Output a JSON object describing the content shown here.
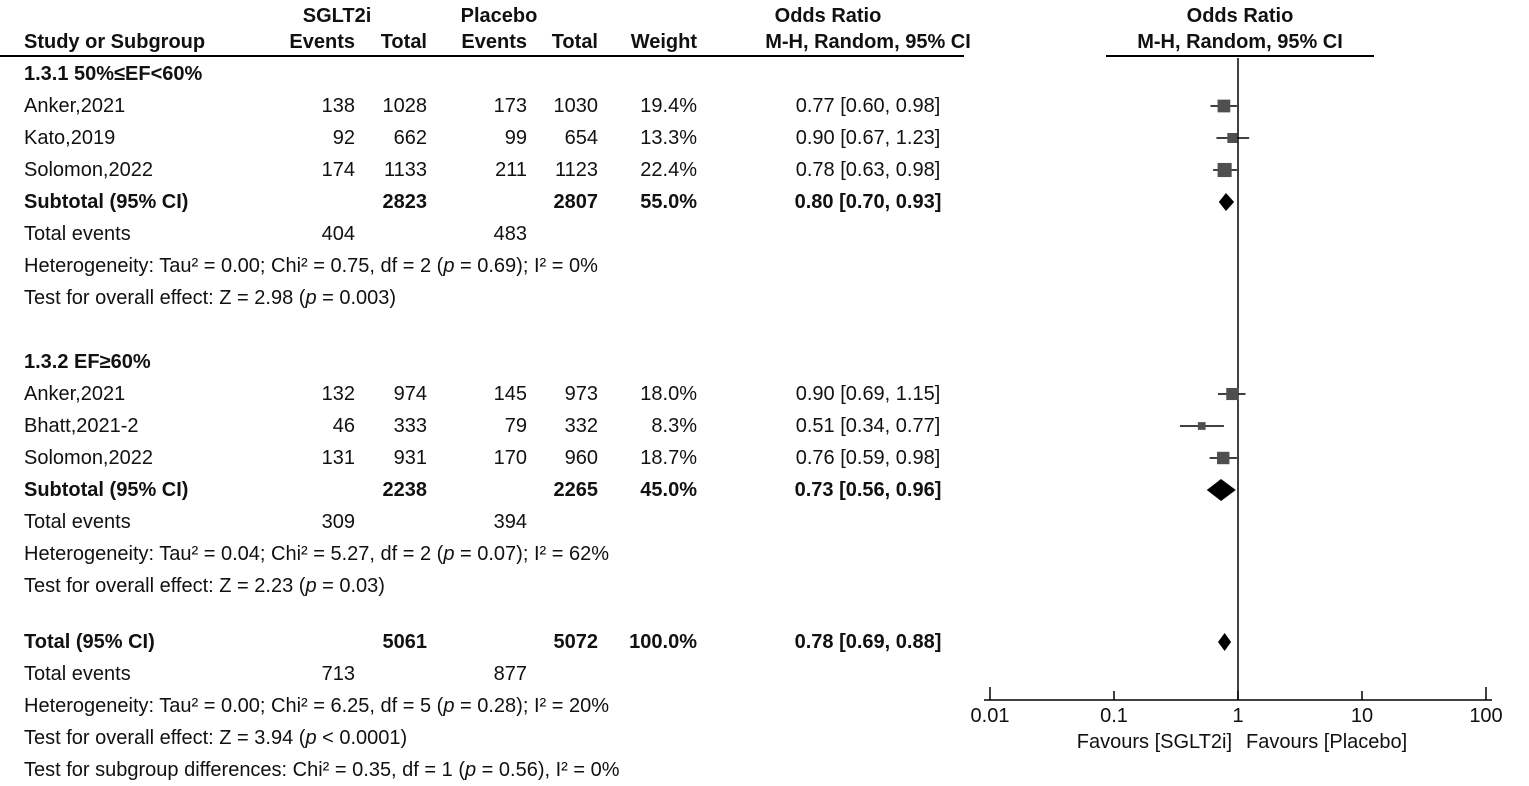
{
  "header": {
    "group1": "SGLT2i",
    "group2": "Placebo",
    "or_left": "Odds Ratio",
    "or_right": "Odds Ratio",
    "col_study": "Study or Subgroup",
    "col_events1": "Events",
    "col_total1": "Total",
    "col_events2": "Events",
    "col_total2": "Total",
    "col_weight": "Weight",
    "col_ci": "M-H, Random, 95% CI",
    "col_ci_plot": "M-H, Random, 95% CI"
  },
  "axis": {
    "scale": "log10",
    "null_line": 1,
    "ticks": [
      0.01,
      0.1,
      1,
      10,
      100
    ],
    "tick_labels": [
      "0.01",
      "0.1",
      "1",
      "10",
      "100"
    ],
    "favours_left": "Favours [SGLT2i]",
    "favours_right": "Favours [Placebo]"
  },
  "marker_color": "#4f4f4f",
  "diamond_color": "#000000",
  "chart_data": {
    "type": "forest",
    "effect_measure": "Odds Ratio",
    "method": "M-H, Random, 95% CI",
    "x_scale": "log10",
    "x_ticks": [
      0.01,
      0.1,
      1,
      10,
      100
    ],
    "rows": [
      {
        "type": "subgroup",
        "label": "1.3.1 50%≤EF<60%"
      },
      {
        "type": "study",
        "label": "Anker,2021",
        "events1": "138",
        "total1": "1028",
        "events2": "173",
        "total2": "1030",
        "weight": "19.4%",
        "ci_text": "0.77 [0.60, 0.98]",
        "or": 0.77,
        "lo": 0.6,
        "hi": 0.98,
        "weight_pct": 19.4
      },
      {
        "type": "study",
        "label": "Kato,2019",
        "events1": "92",
        "total1": "662",
        "events2": "99",
        "total2": "654",
        "weight": "13.3%",
        "ci_text": "0.90 [0.67, 1.23]",
        "or": 0.9,
        "lo": 0.67,
        "hi": 1.23,
        "weight_pct": 13.3
      },
      {
        "type": "study",
        "label": "Solomon,2022",
        "events1": "174",
        "total1": "1133",
        "events2": "211",
        "total2": "1123",
        "weight": "22.4%",
        "ci_text": "0.78 [0.63, 0.98]",
        "or": 0.78,
        "lo": 0.63,
        "hi": 0.98,
        "weight_pct": 22.4
      },
      {
        "type": "subtotal",
        "label": "Subtotal (95% CI)",
        "total1": "2823",
        "total2": "2807",
        "weight": "55.0%",
        "ci_text": "0.80 [0.70, 0.93]",
        "or": 0.8,
        "lo": 0.7,
        "hi": 0.93
      },
      {
        "type": "events",
        "label": "Total events",
        "events1": "404",
        "events2": "483"
      },
      {
        "type": "note",
        "label": "Heterogeneity: Tau² = 0.00; Chi² = 0.75, df = 2 (p = 0.69); I² = 0%"
      },
      {
        "type": "note",
        "label": "Test for overall effect: Z = 2.98 (p = 0.003)"
      },
      {
        "type": "spacer"
      },
      {
        "type": "subgroup",
        "label": "1.3.2 EF≥60%"
      },
      {
        "type": "study",
        "label": "Anker,2021",
        "events1": "132",
        "total1": "974",
        "events2": "145",
        "total2": "973",
        "weight": "18.0%",
        "ci_text": "0.90 [0.69, 1.15]",
        "or": 0.9,
        "lo": 0.69,
        "hi": 1.15,
        "weight_pct": 18.0
      },
      {
        "type": "study",
        "label": "Bhatt,2021-2",
        "events1": "46",
        "total1": "333",
        "events2": "79",
        "total2": "332",
        "weight": "8.3%",
        "ci_text": "0.51 [0.34, 0.77]",
        "or": 0.51,
        "lo": 0.34,
        "hi": 0.77,
        "weight_pct": 8.3
      },
      {
        "type": "study",
        "label": "Solomon,2022",
        "events1": "131",
        "total1": "931",
        "events2": "170",
        "total2": "960",
        "weight": "18.7%",
        "ci_text": "0.76 [0.59, 0.98]",
        "or": 0.76,
        "lo": 0.59,
        "hi": 0.98,
        "weight_pct": 18.7
      },
      {
        "type": "subtotal",
        "label": "Subtotal (95% CI)",
        "total1": "2238",
        "total2": "2265",
        "weight": "45.0%",
        "ci_text": "0.73 [0.56, 0.96]",
        "or": 0.73,
        "lo": 0.56,
        "hi": 0.96
      },
      {
        "type": "events",
        "label": "Total events",
        "events1": "309",
        "events2": "394"
      },
      {
        "type": "note",
        "label": "Heterogeneity: Tau² = 0.04; Chi² = 5.27, df = 2 (p = 0.07); I² = 62%"
      },
      {
        "type": "note",
        "label": "Test for overall effect: Z = 2.23 (p = 0.03)"
      },
      {
        "type": "spacer"
      },
      {
        "type": "total",
        "label": "Total (95% CI)",
        "total1": "5061",
        "total2": "5072",
        "weight": "100.0%",
        "ci_text": "0.78 [0.69, 0.88]",
        "or": 0.78,
        "lo": 0.69,
        "hi": 0.88
      },
      {
        "type": "events",
        "label": "Total events",
        "events1": "713",
        "events2": "877"
      },
      {
        "type": "note",
        "label": "Heterogeneity: Tau² = 0.00; Chi² = 6.25, df = 5 (p = 0.28); I² = 20%"
      },
      {
        "type": "note",
        "label": "Test for overall effect: Z = 3.94 (p < 0.0001)"
      },
      {
        "type": "note",
        "label": "Test for subgroup differences: Chi² = 0.35, df = 1 (p = 0.56), I² = 0%"
      }
    ]
  }
}
